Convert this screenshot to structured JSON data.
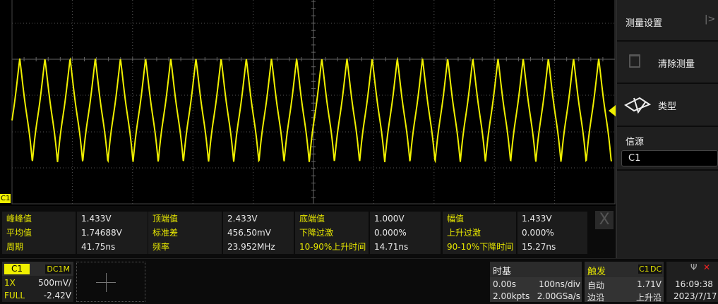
{
  "channel": {
    "name": "C1",
    "coupling": "DC1M",
    "probe": "1X",
    "scale": "500mV/",
    "bandwidth": "FULL",
    "offset": "-2.42V",
    "color": "#f0f000"
  },
  "waveform": {
    "period_ns": 41.75,
    "top_V": 2.433,
    "base_V": 1.0,
    "timebase_ns_per_div": 100
  },
  "measurements": [
    [
      {
        "label": "峰峰值",
        "value": "1.433V"
      },
      {
        "label": "顶端值",
        "value": "2.433V"
      },
      {
        "label": "底端值",
        "value": "1.000V"
      },
      {
        "label": "幅值",
        "value": "1.433V"
      }
    ],
    [
      {
        "label": "平均值",
        "value": "1.74688V"
      },
      {
        "label": "标准差",
        "value": "456.50mV"
      },
      {
        "label": "下降过激",
        "value": "0.000%"
      },
      {
        "label": "上升过激",
        "value": "0.000%"
      }
    ],
    [
      {
        "label": "周期",
        "value": "41.75ns"
      },
      {
        "label": "频率",
        "value": "23.952MHz"
      },
      {
        "label": "10-90%上升时间",
        "value": "14.71ns"
      },
      {
        "label": "90-10%下降时间",
        "value": "15.27ns"
      }
    ]
  ],
  "close_label": "X",
  "menu": {
    "title": "测量设置",
    "clear": "清除测量",
    "type": "类型",
    "source_label": "信源",
    "source_value": "C1"
  },
  "timebase": {
    "title": "时基",
    "delay": "0.00s",
    "scale": "100ns/div",
    "points": "2.00kpts",
    "rate": "2.00GSa/s"
  },
  "trigger": {
    "title": "触发",
    "source": "C1",
    "coupling": "DC",
    "mode": "自动",
    "level": "1.71V",
    "type": "边沿",
    "slope": "上升沿"
  },
  "status": {
    "time": "16:09:38",
    "date": "2023/7/17"
  }
}
